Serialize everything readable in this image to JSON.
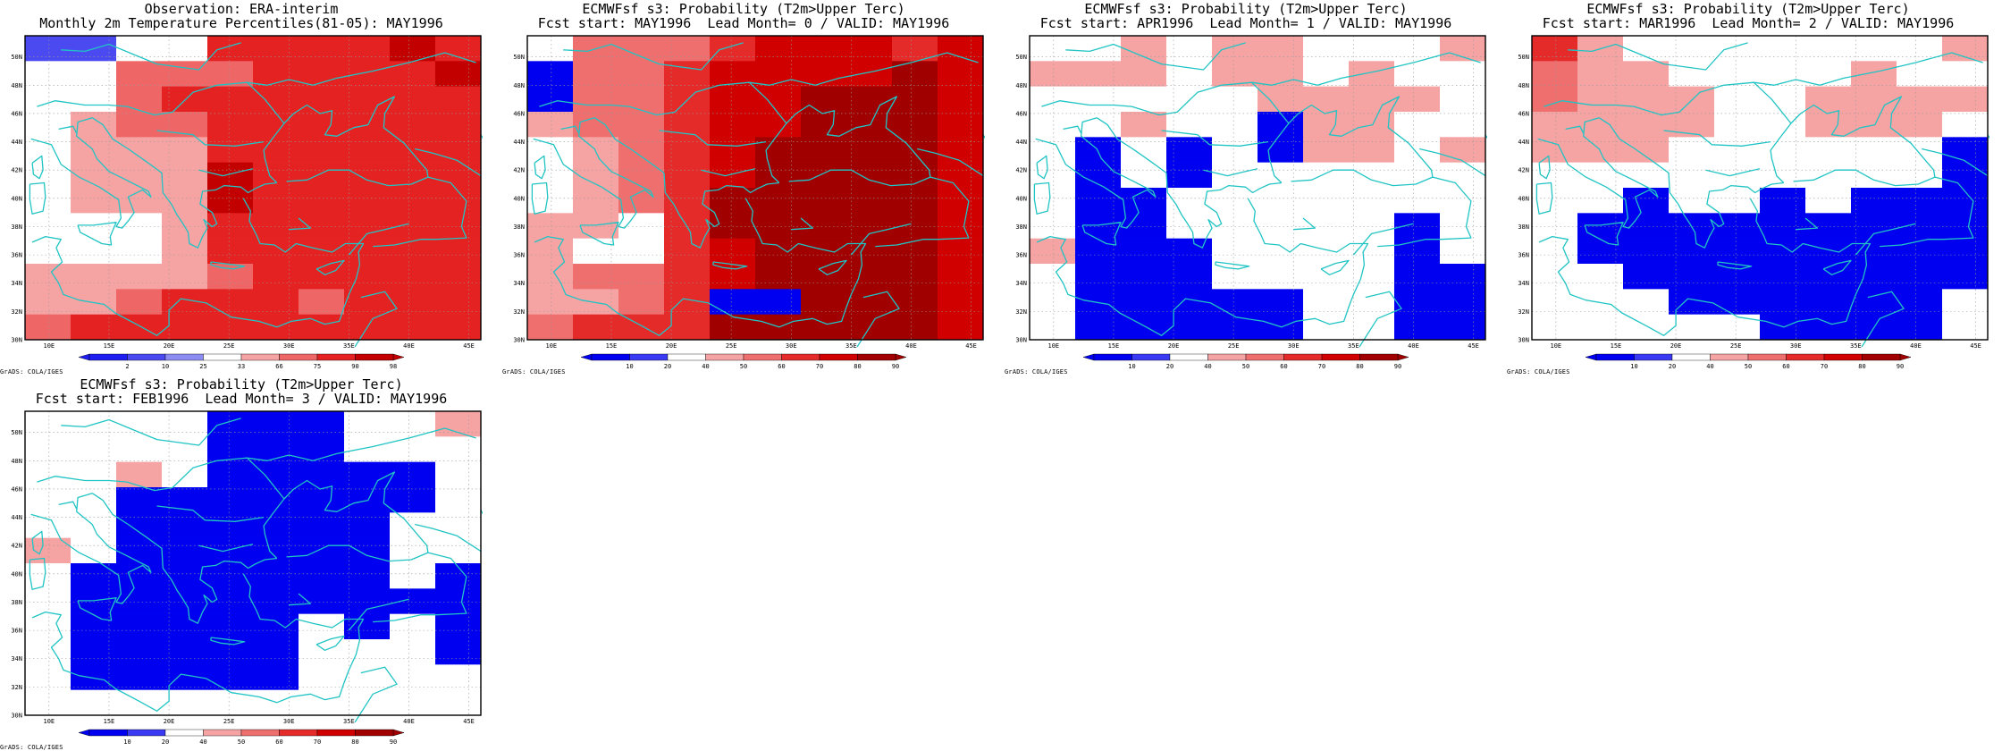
{
  "colors": {
    "land": "#21c4c4",
    "grid": "#9a9a9a",
    "obs_scale": [
      "#1e1ef0",
      "#4a4af0",
      "#8c8cf2",
      "#ffffff",
      "#f6a3a3",
      "#ef6666",
      "#e52222",
      "#c20000"
    ],
    "prob_scale": [
      "#0000f0",
      "#3a3af2",
      "#ffffff",
      "#f6a3a3",
      "#ef6e6e",
      "#e52a2a",
      "#d00000",
      "#a00000"
    ]
  },
  "axes": {
    "lon_labels": [
      "10E",
      "15E",
      "20E",
      "25E",
      "30E",
      "35E",
      "40E",
      "45E"
    ],
    "lat_labels": [
      "30N",
      "32N",
      "34N",
      "36N",
      "38N",
      "40N",
      "42N",
      "44N",
      "46N",
      "48N",
      "50N"
    ]
  },
  "legends": {
    "obs": [
      "2",
      "10",
      "25",
      "33",
      "66",
      "75",
      "90",
      "98"
    ],
    "prob": [
      "10",
      "20",
      "40",
      "50",
      "60",
      "70",
      "80",
      "90"
    ]
  },
  "credit": "GrADS: COLA/IGES",
  "panels": [
    {
      "id": "obs",
      "title1": "Observation: ERA-interim",
      "title2": "Monthly 2m Temperature Percentiles(81-05): MAY1996",
      "legend": "obs",
      "grid": [
        "1133666676",
        "3355566667",
        "3356666666",
        "3455666666",
        "3444666666",
        "3444766666",
        "3444766666",
        "3334666666",
        "3334666666",
        "4444566666",
        "4456665666",
        "5666666666"
      ]
    },
    {
      "id": "lead0",
      "title1": "ECMWFsf s3: Probability (T2m>Upper Terc)",
      "title2": "Fcst start: MAY1996  Lead Month= 0 / VALID: MAY1996",
      "legend": "prob",
      "grid": [
        "2444566656",
        "0445666676",
        "0445667776",
        "3445667776",
        "2345677776",
        "2345677776",
        "2345777776",
        "3325777776",
        "3225677776",
        "3445677776",
        "3345007776",
        "4555777776"
      ]
    },
    {
      "id": "lead1",
      "title1": "ECMWFsf s3: Probability (T2m>Upper Terc)",
      "title2": "Fcst start: APR1996  Lead Month= 1 / VALID: MAY1996",
      "legend": "prob",
      "grid": [
        "2232332223",
        "3332332322",
        "2222233332",
        "2232203322",
        "2020203323",
        "2020222222",
        "2002222222",
        "2002222202",
        "3000222202",
        "2000222200",
        "2000002200",
        "2000002200"
      ]
    },
    {
      "id": "lead2",
      "title1": "ECMWFsf s3: Probability (T2m>Upper Terc)",
      "title2": "Fcst start: MAR1996  Lead Month= 2 / VALID: MAY1996",
      "legend": "prob",
      "grid": [
        "5322222223",
        "4332222322",
        "4333223333",
        "3333223332",
        "3332222220",
        "2222222220",
        "2202202000",
        "2000000000",
        "2000000000",
        "2200000000",
        "2220000002",
        "2222200002"
      ]
    },
    {
      "id": "lead3",
      "title1": "ECMWFsf s3: Probability (T2m>Upper Terc)",
      "title2": "Fcst start: FEB1996  Lead Month= 3 / VALID: MAY1996",
      "legend": "prob",
      "grid": [
        "2222000223",
        "2222000222",
        "2232000002",
        "2200000002",
        "2200000022",
        "3200000022",
        "2000000020",
        "2000000000",
        "2000002020",
        "2000002220",
        "2000002222",
        "2222222222"
      ]
    }
  ]
}
